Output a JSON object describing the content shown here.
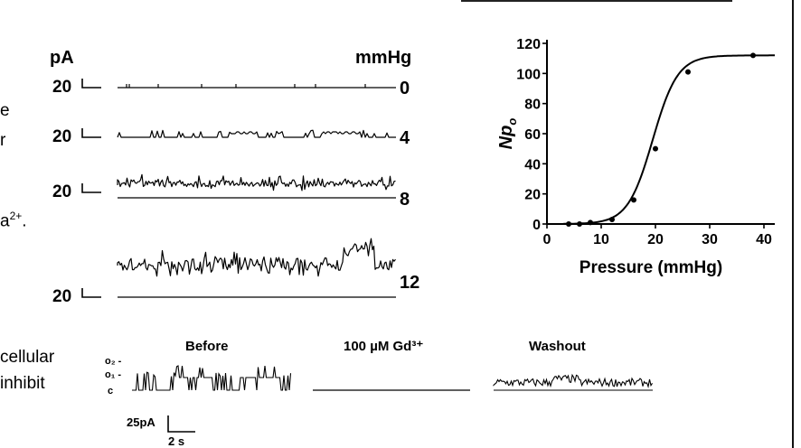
{
  "left_text": {
    "fragments": [
      "e",
      "r",
      "a",
      "2+",
      ".",
      "cellular",
      "inhibit"
    ]
  },
  "traces": {
    "y_unit": "pA",
    "p_unit": "mmHg",
    "scale_label": "20",
    "pressures": [
      "0",
      "4",
      "8",
      "12"
    ]
  },
  "gd_panel": {
    "titles": [
      "Before",
      "100 µM Gd³⁺",
      "Washout"
    ],
    "state_labels": [
      "o₂ -",
      "o₁ -",
      "c"
    ],
    "scale_y": "25pA",
    "scale_x": "2 s"
  },
  "chart_data": {
    "type": "line",
    "title": "",
    "xlabel": "Pressure (mmHg)",
    "ylabel_main": "Np",
    "ylabel_sub": "o",
    "xlim": [
      0,
      42
    ],
    "ylim": [
      0,
      120
    ],
    "xticks": [
      0,
      10,
      20,
      30,
      40
    ],
    "yticks": [
      0,
      20,
      40,
      60,
      80,
      100,
      120
    ],
    "points": [
      {
        "x": 4,
        "y": 0
      },
      {
        "x": 6,
        "y": 0
      },
      {
        "x": 8,
        "y": 1
      },
      {
        "x": 12,
        "y": 3
      },
      {
        "x": 16,
        "y": 16
      },
      {
        "x": 20,
        "y": 50
      },
      {
        "x": 26,
        "y": 101
      },
      {
        "x": 38,
        "y": 112
      }
    ],
    "fit": {
      "max": 112,
      "half": 19.5,
      "slope": 2.3
    },
    "grid": false
  }
}
